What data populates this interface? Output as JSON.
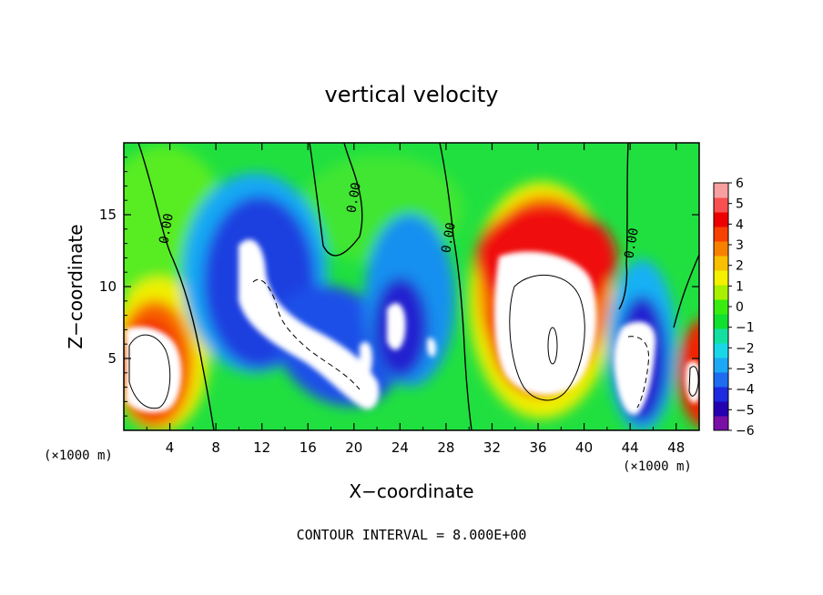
{
  "chart_data": {
    "type": "heatmap",
    "title": "vertical velocity",
    "xlabel": "X−coordinate",
    "ylabel": "Z−coordinate",
    "x_unit_left": "(×1000 m)",
    "x_unit_right": "(×1000 m)",
    "footer": "CONTOUR INTERVAL = 8.000E+00",
    "xlim": [
      0,
      50
    ],
    "ylim": [
      0,
      20
    ],
    "x_ticks": [
      4,
      8,
      12,
      16,
      20,
      24,
      28,
      32,
      36,
      40,
      44,
      48
    ],
    "x_tick_labels": [
      "4",
      "8",
      "12",
      "16",
      "20",
      "24",
      "28",
      "32",
      "36",
      "40",
      "44",
      "48"
    ],
    "y_ticks": [
      5,
      10,
      15
    ],
    "y_tick_labels": [
      "5",
      "10",
      "15"
    ],
    "colorbar": {
      "min": -6,
      "max": 6,
      "ticks": [
        6,
        5,
        4,
        3,
        2,
        1,
        0,
        -1,
        -2,
        -3,
        -4,
        -5,
        -6
      ],
      "tick_labels": [
        "6",
        "5",
        "4",
        "3",
        "2",
        "1",
        "0",
        "−1",
        "−2",
        "−3",
        "−4",
        "−5",
        "−6"
      ],
      "colors": [
        "#7a0fa8",
        "#2400b0",
        "#1c2ae0",
        "#1e6cf0",
        "#1ca8f4",
        "#18d8e8",
        "#12e0a0",
        "#10e030",
        "#38ec10",
        "#a8f000",
        "#f4f000",
        "#f8c000",
        "#f88000",
        "#f84000",
        "#ef0000",
        "#f85050",
        "#f8a0a0"
      ]
    },
    "contour_labels": [
      "0.00",
      "0.00",
      "0.00",
      "0.00"
    ],
    "features": [
      {
        "kind": "updraft",
        "x": 2.8,
        "z": 4.5,
        "w": 10
      },
      {
        "kind": "downdraft",
        "x": 12.5,
        "z": 8.5,
        "w": -10
      },
      {
        "kind": "downdraft",
        "x": 19.5,
        "z": 4.0,
        "w": -10
      },
      {
        "kind": "downdraft",
        "x": 23.5,
        "z": 7.5,
        "w": -7
      },
      {
        "kind": "updraft",
        "x": 36.5,
        "z": 8.0,
        "w": 12
      },
      {
        "kind": "downdraft",
        "x": 44.5,
        "z": 5.0,
        "w": -9
      },
      {
        "kind": "updraft",
        "x": 49.5,
        "z": 3.5,
        "w": 8
      }
    ]
  }
}
